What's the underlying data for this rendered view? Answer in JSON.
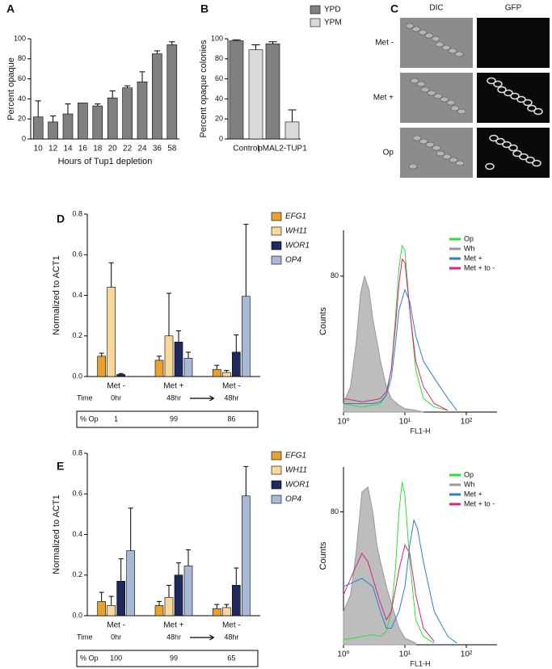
{
  "chart_data": [
    {
      "type": "bar",
      "panel": "A",
      "x_label": "Hours of Tup1 depletion",
      "y_label": "Percent opaque",
      "categories": [
        "10",
        "12",
        "14",
        "16",
        "18",
        "20",
        "22",
        "24",
        "36",
        "58"
      ],
      "values": [
        22,
        17,
        25,
        36,
        33,
        41,
        51,
        57,
        85,
        94
      ],
      "errors": [
        16,
        6,
        10,
        0,
        2,
        7,
        2,
        10,
        3,
        3
      ],
      "color": "#808080",
      "ylim": [
        0,
        100
      ],
      "yticks": [
        0,
        20,
        40,
        60,
        80,
        100
      ]
    },
    {
      "type": "bar",
      "panel": "B",
      "y_label": "Percent opaque colonies",
      "categories": [
        "Control",
        "pMAL2-TUP1"
      ],
      "series": [
        {
          "name": "YPD",
          "color": "#808080",
          "values": [
            98,
            95
          ],
          "errors": [
            1,
            2
          ]
        },
        {
          "name": "YPM",
          "color": "#d9d9d9",
          "values": [
            89,
            17
          ],
          "errors": [
            5,
            12
          ]
        }
      ],
      "ylim": [
        0,
        100
      ],
      "yticks": [
        0,
        20,
        40,
        60,
        80,
        100
      ]
    },
    {
      "type": "bar",
      "panel": "D",
      "y_label": "Normalized to ACT1",
      "categories": [
        "Met -",
        "Met +",
        "Met -"
      ],
      "sublabels": [
        "0hr",
        "48hr",
        "48hr"
      ],
      "row_label": "Time",
      "percent_opaque": {
        "label": "% Op",
        "values": [
          1,
          99,
          86
        ]
      },
      "series": [
        {
          "name": "EFG1",
          "color": "#e8a030",
          "values": [
            0.1,
            0.08,
            0.035
          ],
          "errors": [
            0.015,
            0.02,
            0.02
          ]
        },
        {
          "name": "WH11",
          "color": "#f7d79a",
          "values": [
            0.44,
            0.2,
            0.02
          ],
          "errors": [
            0.12,
            0.21,
            0.01
          ]
        },
        {
          "name": "WOR1",
          "color": "#1f2a5c",
          "values": [
            0.01,
            0.17,
            0.12
          ],
          "errors": [
            0.005,
            0.055,
            0.085
          ]
        },
        {
          "name": "OP4",
          "color": "#a9b8d6",
          "values": [
            0,
            0.09,
            0.395
          ],
          "errors": [
            0,
            0.03,
            0.355
          ]
        }
      ],
      "ylim": [
        0,
        0.8
      ],
      "yticks": [
        {
          "value": 0,
          "label": "0.0"
        },
        {
          "value": 0.2,
          "label": "0.2"
        },
        {
          "value": 0.4,
          "label": "0.4"
        },
        {
          "value": 0.6,
          "label": "0.6"
        },
        {
          "value": 0.8,
          "label": "0.8"
        }
      ]
    },
    {
      "type": "line",
      "x_label": "FL1-H",
      "y_label": "Counts",
      "xscale": "log",
      "xlim": [
        1,
        316
      ],
      "xticks": [
        {
          "value": 1,
          "label": "10⁰"
        },
        {
          "value": 10,
          "label": "10¹"
        },
        {
          "value": 100,
          "label": "10²"
        }
      ],
      "ylim": [
        0,
        107
      ],
      "yticks": [
        80
      ],
      "series": [
        {
          "name": "Op",
          "color": "#33dd33",
          "x": [
            1,
            2,
            3,
            4,
            5,
            6,
            7,
            8,
            9,
            10,
            12,
            15,
            20,
            30,
            50
          ],
          "values": [
            5,
            3,
            4,
            5,
            10,
            25,
            55,
            85,
            98,
            95,
            60,
            25,
            8,
            3,
            1
          ]
        },
        {
          "name": "Wh",
          "color": "#999999",
          "fill": true,
          "x": [
            1,
            1.3,
            1.6,
            1.9,
            2.2,
            2.6,
            3,
            3.5,
            4,
            5,
            6,
            8,
            10,
            15,
            20
          ],
          "values": [
            5,
            15,
            40,
            70,
            80,
            72,
            55,
            42,
            30,
            15,
            8,
            4,
            2,
            1,
            0
          ]
        },
        {
          "name": "Met +",
          "color": "#2a7fd4",
          "x": [
            1,
            2,
            3,
            4,
            5,
            6,
            7,
            8,
            10,
            12,
            15,
            20,
            30,
            50,
            70
          ],
          "values": [
            5,
            5,
            5,
            6,
            10,
            20,
            40,
            60,
            72,
            65,
            45,
            30,
            20,
            8,
            1
          ]
        },
        {
          "name": "Met + to -",
          "color": "#e0207a",
          "x": [
            1,
            2,
            3,
            4,
            5,
            6,
            7,
            8,
            9,
            10,
            12,
            15,
            20,
            30,
            50
          ],
          "values": [
            8,
            6,
            7,
            8,
            12,
            25,
            50,
            75,
            90,
            88,
            60,
            30,
            15,
            5,
            1
          ]
        }
      ]
    },
    {
      "type": "bar",
      "panel": "E",
      "y_label": "Normalized to ACT1",
      "categories": [
        "Met -",
        "Met +",
        "Met -"
      ],
      "sublabels": [
        "0hr",
        "48hr",
        "48hr"
      ],
      "row_label": "Time",
      "percent_opaque": {
        "label": "% Op",
        "values": [
          100,
          99,
          65
        ]
      },
      "series": [
        {
          "name": "EFG1",
          "color": "#e8a030",
          "values": [
            0.07,
            0.05,
            0.035
          ],
          "errors": [
            0.045,
            0.02,
            0.02
          ]
        },
        {
          "name": "WH11",
          "color": "#f7d79a",
          "values": [
            0.05,
            0.09,
            0.04
          ],
          "errors": [
            0.045,
            0.06,
            0.015
          ]
        },
        {
          "name": "WOR1",
          "color": "#1f2a5c",
          "values": [
            0.17,
            0.2,
            0.15
          ],
          "errors": [
            0.11,
            0.06,
            0.085
          ]
        },
        {
          "name": "OP4",
          "color": "#a9b8d6",
          "values": [
            0.32,
            0.245,
            0.59
          ],
          "errors": [
            0.21,
            0.08,
            0.145
          ]
        }
      ],
      "ylim": [
        0,
        0.8
      ],
      "yticks": [
        {
          "value": 0,
          "label": "0.0"
        },
        {
          "value": 0.2,
          "label": "0.2"
        },
        {
          "value": 0.4,
          "label": "0.4"
        },
        {
          "value": 0.6,
          "label": "0.6"
        },
        {
          "value": 0.8,
          "label": "0.8"
        }
      ]
    },
    {
      "type": "line",
      "x_label": "FL1-H",
      "y_label": "Counts",
      "xscale": "log",
      "xlim": [
        1,
        316
      ],
      "xticks": [
        {
          "value": 1,
          "label": "10⁰"
        },
        {
          "value": 10,
          "label": "10¹"
        },
        {
          "value": 100,
          "label": "10²"
        }
      ],
      "ylim": [
        0,
        107
      ],
      "yticks": [
        80
      ],
      "series": [
        {
          "name": "Op",
          "color": "#33dd33",
          "x": [
            1,
            2,
            3,
            4,
            5,
            6,
            7,
            8,
            9,
            10,
            12,
            15,
            20,
            30
          ],
          "values": [
            3,
            5,
            6,
            5,
            8,
            20,
            45,
            80,
            98,
            90,
            50,
            15,
            5,
            1
          ]
        },
        {
          "name": "Wh",
          "color": "#999999",
          "fill": true,
          "x": [
            1,
            1.3,
            1.6,
            2,
            2.5,
            3,
            3.5,
            4,
            5,
            6,
            8,
            10,
            15
          ],
          "values": [
            20,
            30,
            55,
            92,
            95,
            80,
            60,
            50,
            35,
            25,
            10,
            4,
            1
          ]
        },
        {
          "name": "Met +",
          "color": "#2a7fd4",
          "x": [
            1,
            2,
            3,
            4,
            5,
            6,
            8,
            10,
            12,
            14,
            16,
            20,
            30,
            50,
            70
          ],
          "values": [
            35,
            40,
            35,
            20,
            10,
            10,
            20,
            35,
            60,
            75,
            70,
            50,
            20,
            5,
            1
          ]
        },
        {
          "name": "Met + to -",
          "color": "#e0207a",
          "x": [
            1,
            1.5,
            2,
            2.5,
            3,
            4,
            5,
            6,
            8,
            10,
            12,
            15,
            20,
            30
          ],
          "values": [
            30,
            45,
            55,
            50,
            40,
            25,
            15,
            20,
            45,
            60,
            55,
            30,
            10,
            2
          ]
        }
      ]
    }
  ],
  "micrographs": {
    "panel": "C",
    "columns": [
      "DIC",
      "GFP"
    ],
    "rows": [
      "Met -",
      "Met +",
      "Op"
    ]
  }
}
